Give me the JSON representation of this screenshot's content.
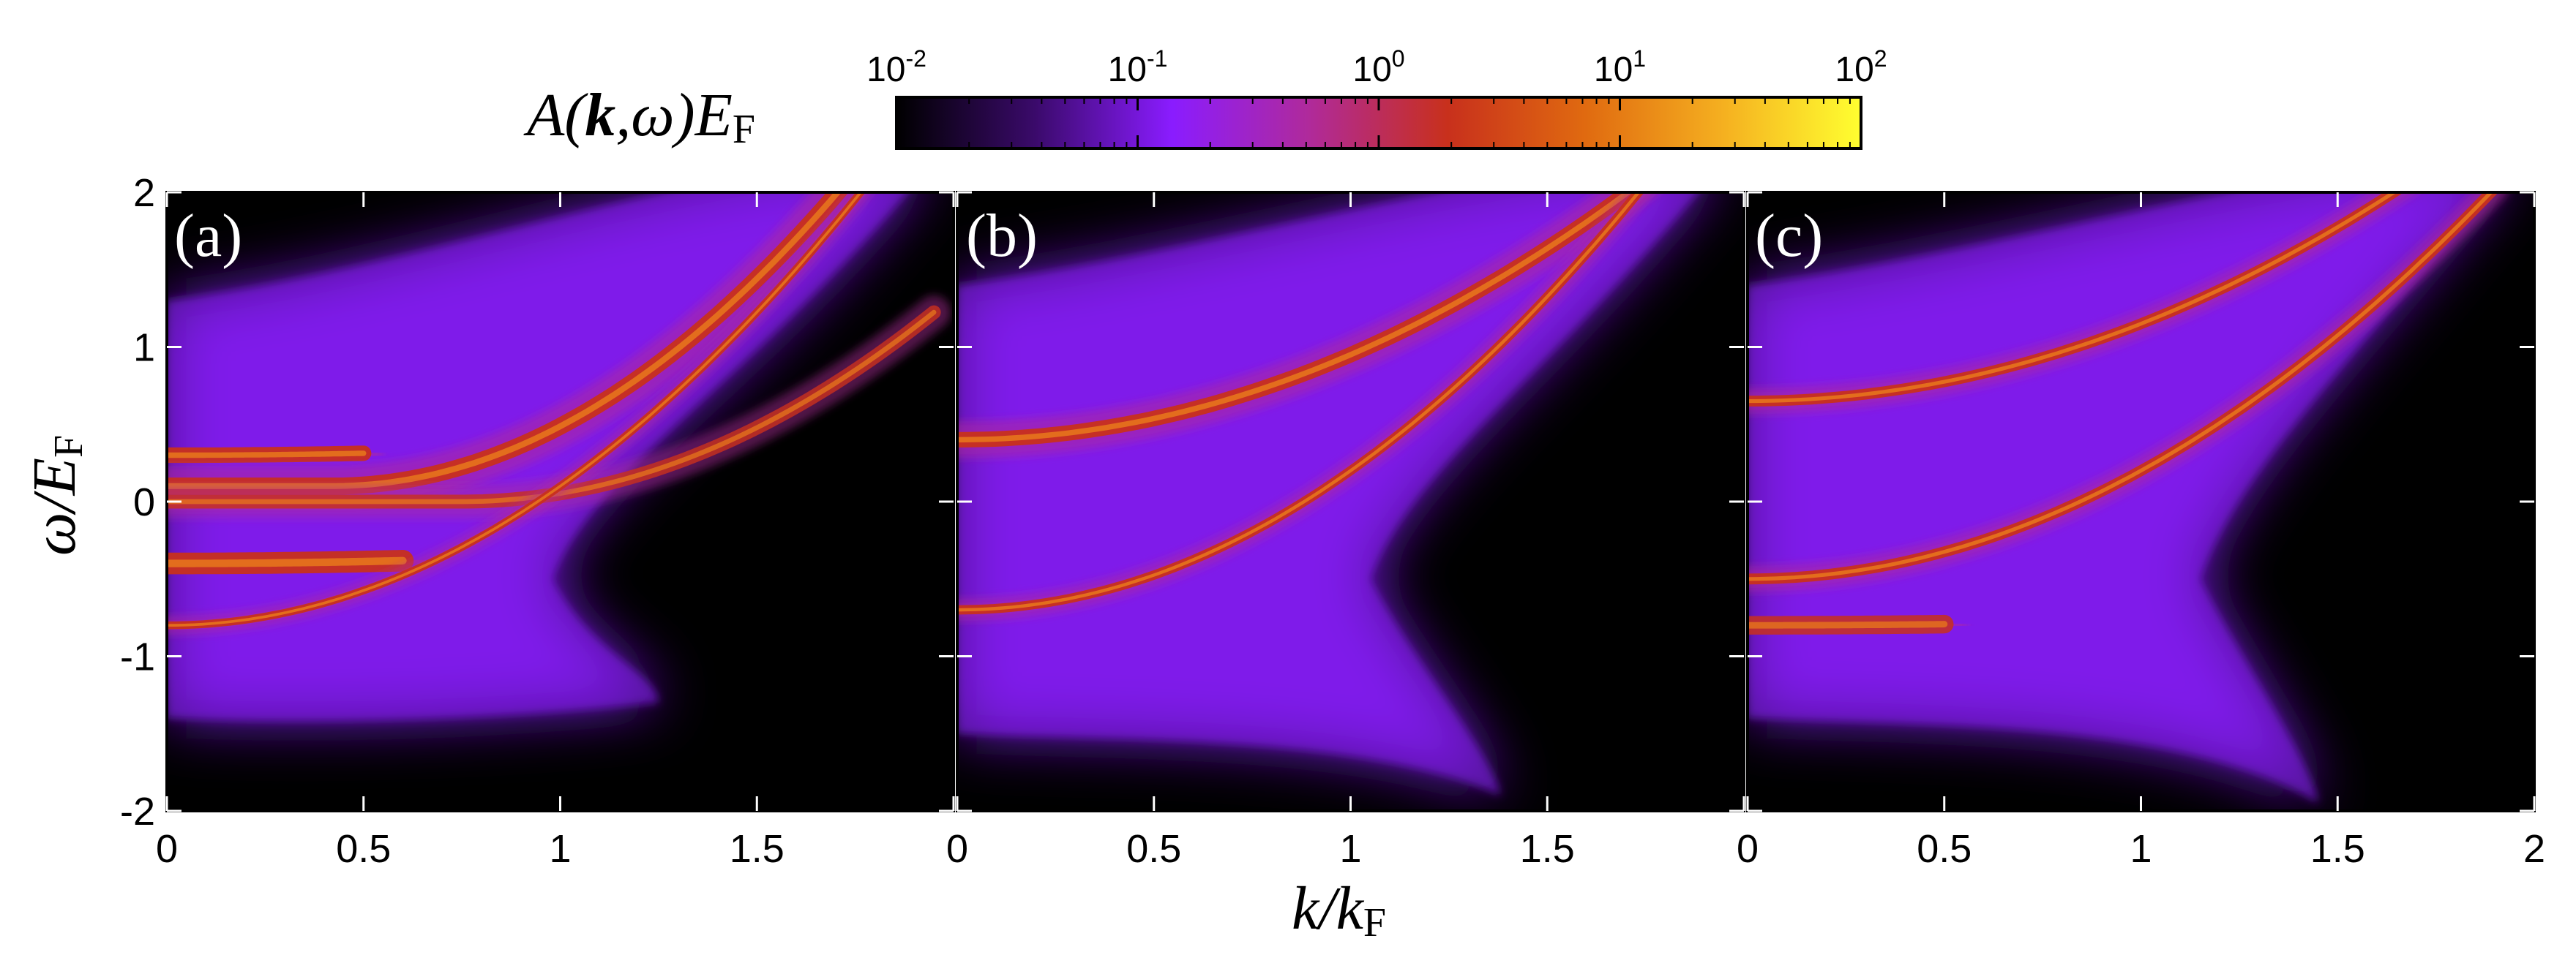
{
  "chart_data": {
    "type": "heatmap",
    "figure": "Spectral function A(k, omega) in three panels",
    "colorbar": {
      "label": {
        "prefix": "A(",
        "k": "k",
        "mid": ",",
        "omega": "ω",
        "suffix": ")E",
        "sub": "F"
      },
      "scale": "log",
      "range": [
        0.01,
        100
      ],
      "ticks": [
        {
          "base": "10",
          "exp": "-2"
        },
        {
          "base": "10",
          "exp": "-1"
        },
        {
          "base": "10",
          "exp": "0"
        },
        {
          "base": "10",
          "exp": "1"
        },
        {
          "base": "10",
          "exp": "2"
        }
      ],
      "colors": [
        "#000000",
        "#3a0a6a",
        "#8a1cff",
        "#b02a9a",
        "#c8301c",
        "#e06a10",
        "#f5b020",
        "#ffff30"
      ]
    },
    "x_axis": {
      "label": {
        "main": "k/k",
        "sub": "F"
      },
      "panel_ticks": [
        [
          "0",
          "0.5",
          "1",
          "1.5",
          ""
        ],
        [
          "0",
          "0.5",
          "1",
          "1.5",
          ""
        ],
        [
          "0",
          "0.5",
          "1",
          "1.5",
          "2"
        ]
      ],
      "range": [
        0,
        2
      ]
    },
    "y_axis": {
      "label": {
        "main": "ω/E",
        "sub": "F"
      },
      "ticks": [
        "2",
        "1",
        "0",
        "-1",
        "-2"
      ],
      "range": [
        -2,
        2
      ]
    },
    "panels": [
      {
        "label": "(a)",
        "bands": [
          {
            "k0": 0.0,
            "w0": 0.3,
            "a": 0.05,
            "kc": 0.5,
            "w": 0.05,
            "opt": 1.0
          },
          {
            "k0": 0.0,
            "w0": -0.4,
            "a": 0.05,
            "kc": 0.6,
            "w": 0.07,
            "opt": 1.0
          },
          {
            "k0": 0.42,
            "w0": 0.1,
            "a": 1.15,
            "kc": 1.9,
            "w": 0.055,
            "opt": 1.0
          },
          {
            "k0": 0.75,
            "w0": 0.0,
            "a": 0.85,
            "kc": 1.95,
            "w": 0.045,
            "opt": 0.85
          },
          {
            "k0": 0.0,
            "w0": -0.8,
            "a": 0.9,
            "kc": 1.85,
            "w": 0.025,
            "opt": 1.0
          }
        ],
        "purple_region": {
          "top": 1.3,
          "bottom": -1.4,
          "edge_k": 0.98
        },
        "tail_point": [
          1.25,
          -1.3
        ]
      },
      {
        "label": "(b)",
        "bands": [
          {
            "k0": 0.0,
            "w0": 0.4,
            "a": 0.55,
            "kc": 1.9,
            "w": 0.05,
            "opt": 1.0
          },
          {
            "k0": 0.0,
            "w0": -0.7,
            "a": 0.9,
            "kc": 1.85,
            "w": 0.03,
            "opt": 1.0
          }
        ],
        "purple_region": {
          "top": 1.4,
          "bottom": -1.5,
          "edge_k": 1.05
        },
        "tail_point": [
          1.38,
          -1.9
        ]
      },
      {
        "label": "(c)",
        "bands": [
          {
            "k0": 0.0,
            "w0": 0.65,
            "a": 0.5,
            "kc": 1.85,
            "w": 0.035,
            "opt": 1.0
          },
          {
            "k0": 0.0,
            "w0": -0.5,
            "a": 0.7,
            "kc": 1.9,
            "w": 0.035,
            "opt": 1.0
          },
          {
            "k0": 0.0,
            "w0": -0.8,
            "a": 0.03,
            "kc": 0.5,
            "w": 0.06,
            "opt": 0.9
          }
        ],
        "purple_region": {
          "top": 1.4,
          "bottom": -1.4,
          "edge_k": 1.15
        },
        "tail_point": [
          1.45,
          -1.95
        ]
      }
    ]
  }
}
